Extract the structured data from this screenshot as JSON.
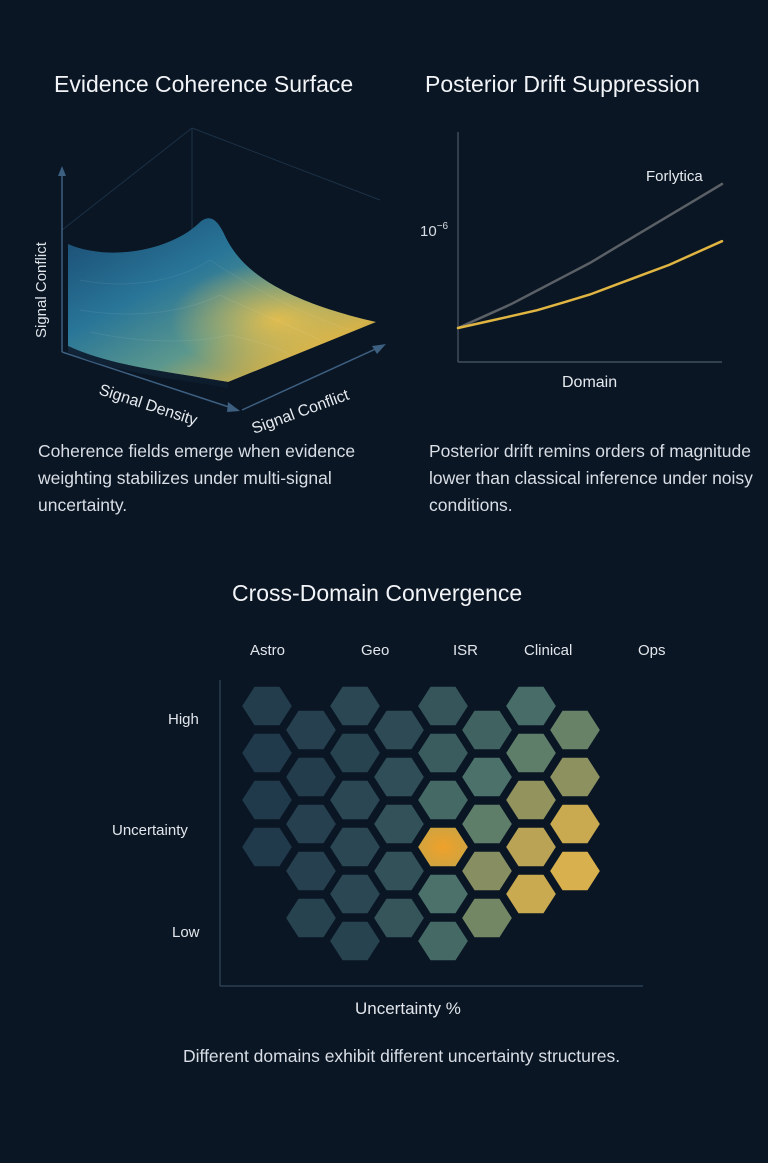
{
  "colors": {
    "background": "#0a1624",
    "forlytica_line": "#5b6066",
    "classical_line": "#e0b541",
    "hex_low": "#1b3247",
    "hex_high": "#e8b64a"
  },
  "panel_surface": {
    "title": "Evidence Coherence Surface",
    "axis_vertical": "Signal Conflict",
    "axis_left": "Signal Density",
    "axis_right": "Signal Conflict",
    "caption": "Coherence fields emerge when evidence weighting stabilizes under multi-signal uncertainty."
  },
  "panel_drift": {
    "title": "Posterior Drift Suppression",
    "caption": "Posterior drift remins orders of magnitude lower than classical inference under noisy conditions."
  },
  "panel_convergence": {
    "title": "Cross-Domain Convergence",
    "caption": "Different domains exhibit different uncertainty structures."
  },
  "chart_data": [
    {
      "type": "surface",
      "title": "Evidence Coherence Surface",
      "axes": [
        "Signal Density",
        "Signal Conflict",
        "Signal Conflict"
      ]
    },
    {
      "type": "line",
      "title": "Posterior Drift Suppression",
      "xlabel": "Domain",
      "ytick": "10⁻⁶",
      "x": [
        0,
        0.1,
        0.2,
        0.3,
        0.4,
        0.5,
        0.6,
        0.7,
        0.8,
        0.9,
        1.0
      ],
      "series": [
        {
          "name": "Forlytica",
          "color": "#5b6066",
          "values": [
            0,
            0.06,
            0.12,
            0.19,
            0.26,
            0.33,
            0.41,
            0.49,
            0.57,
            0.65,
            0.73
          ]
        },
        {
          "values": [
            0,
            0.03,
            0.06,
            0.09,
            0.13,
            0.17,
            0.22,
            0.27,
            0.32,
            0.38,
            0.44
          ],
          "color": "#e0b541"
        }
      ]
    },
    {
      "type": "heatmap",
      "title": "Cross-Domain Convergence",
      "xlabel": "Uncertainty %",
      "x_categories": [
        "Astro",
        "Geo",
        "ISR",
        "Clinical",
        "Ops"
      ],
      "y_labels": [
        "High",
        "Uncertainty",
        "Low"
      ],
      "cells": [
        {
          "col": 1,
          "row": 0,
          "value": 0.08
        },
        {
          "col": 1,
          "row": 1,
          "value": 0.05
        },
        {
          "col": 1,
          "row": 2,
          "value": 0.05
        },
        {
          "col": 1,
          "row": 3,
          "value": 0.05
        },
        {
          "col": 2,
          "row": 0,
          "value": 0.1
        },
        {
          "col": 2,
          "row": 1,
          "value": 0.08
        },
        {
          "col": 2,
          "row": 2,
          "value": 0.1
        },
        {
          "col": 2,
          "row": 3,
          "value": 0.1
        },
        {
          "col": 2,
          "row": 4,
          "value": 0.12
        },
        {
          "col": 3,
          "row": 0,
          "value": 0.15
        },
        {
          "col": 3,
          "row": 1,
          "value": 0.12
        },
        {
          "col": 3,
          "row": 2,
          "value": 0.15
        },
        {
          "col": 3,
          "row": 3,
          "value": 0.15
        },
        {
          "col": 3,
          "row": 4,
          "value": 0.15
        },
        {
          "col": 3,
          "row": 5,
          "value": 0.12
        },
        {
          "col": 4,
          "row": 0,
          "value": 0.18
        },
        {
          "col": 4,
          "row": 1,
          "value": 0.2
        },
        {
          "col": 4,
          "row": 2,
          "value": 0.22
        },
        {
          "col": 4,
          "row": 3,
          "value": 0.22
        },
        {
          "col": 4,
          "row": 4,
          "value": 0.25
        },
        {
          "col": 5,
          "row": 0,
          "value": 0.25
        },
        {
          "col": 5,
          "row": 1,
          "value": 0.3
        },
        {
          "col": 5,
          "row": 2,
          "value": 0.4
        },
        {
          "col": 5,
          "row": 3,
          "value": 0.8
        },
        {
          "col": 5,
          "row": 4,
          "value": 0.45
        },
        {
          "col": 5,
          "row": 5,
          "value": 0.4
        },
        {
          "col": 6,
          "row": 0,
          "value": 0.35
        },
        {
          "col": 6,
          "row": 1,
          "value": 0.45
        },
        {
          "col": 6,
          "row": 2,
          "value": 0.55
        },
        {
          "col": 6,
          "row": 3,
          "value": 0.68
        },
        {
          "col": 6,
          "row": 4,
          "value": 0.62
        },
        {
          "col": 7,
          "row": 0,
          "value": 0.42
        },
        {
          "col": 7,
          "row": 1,
          "value": 0.55
        },
        {
          "col": 7,
          "row": 2,
          "value": 0.72
        },
        {
          "col": 7,
          "row": 3,
          "value": 0.85
        },
        {
          "col": 7,
          "row": 4,
          "value": 0.9
        },
        {
          "col": 8,
          "row": 0,
          "value": 0.58
        },
        {
          "col": 8,
          "row": 1,
          "value": 0.7
        },
        {
          "col": 8,
          "row": 2,
          "value": 0.9
        },
        {
          "col": 8,
          "row": 3,
          "value": 0.95
        }
      ]
    }
  ]
}
